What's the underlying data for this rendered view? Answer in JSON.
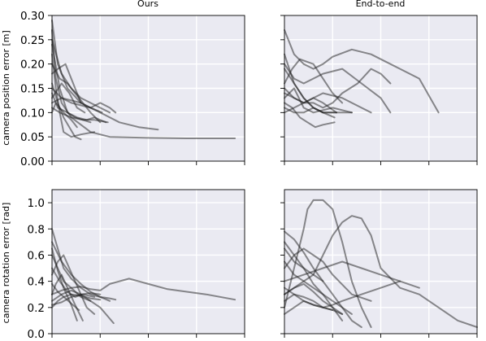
{
  "chart_data": [
    {
      "type": "line",
      "title": "Ours",
      "ylabel": "camera position error [m]",
      "ylim": [
        0,
        0.3
      ],
      "xlim": [
        0,
        1
      ],
      "y_ticks": [
        "0.00",
        "0.05",
        "0.10",
        "0.15",
        "0.20",
        "0.25",
        "0.30"
      ],
      "y_tick_values": [
        0,
        0.05,
        0.1,
        0.15,
        0.2,
        0.25,
        0.3
      ],
      "x_ticks": [
        0,
        0.25,
        0.5,
        0.75,
        1.0
      ],
      "x_tick_labels_shown": false,
      "grid": true,
      "series": [
        {
          "x": [
            0,
            0.03,
            0.08,
            0.15,
            0.25,
            0.35,
            0.45,
            0.55
          ],
          "values": [
            0.29,
            0.2,
            0.15,
            0.12,
            0.1,
            0.08,
            0.07,
            0.065
          ]
        },
        {
          "x": [
            0,
            0.02,
            0.05,
            0.1,
            0.2,
            0.3,
            0.5,
            0.7,
            0.95
          ],
          "values": [
            0.27,
            0.17,
            0.12,
            0.09,
            0.06,
            0.05,
            0.048,
            0.047,
            0.047
          ]
        },
        {
          "x": [
            0,
            0.05,
            0.1,
            0.15,
            0.2,
            0.25,
            0.3
          ],
          "values": [
            0.25,
            0.18,
            0.15,
            0.13,
            0.12,
            0.11,
            0.1
          ]
        },
        {
          "x": [
            0,
            0.02,
            0.04,
            0.06,
            0.1,
            0.15,
            0.22
          ],
          "values": [
            0.22,
            0.15,
            0.1,
            0.06,
            0.05,
            0.055,
            0.06
          ]
        },
        {
          "x": [
            0,
            0.04,
            0.08,
            0.12,
            0.16,
            0.2,
            0.25
          ],
          "values": [
            0.2,
            0.17,
            0.16,
            0.14,
            0.12,
            0.1,
            0.08
          ]
        },
        {
          "x": [
            0,
            0.03,
            0.07,
            0.1,
            0.15
          ],
          "values": [
            0.18,
            0.19,
            0.2,
            0.17,
            0.12
          ]
        },
        {
          "x": [
            0,
            0.03,
            0.06,
            0.09,
            0.12,
            0.15
          ],
          "values": [
            0.16,
            0.12,
            0.09,
            0.07,
            0.05,
            0.045
          ]
        },
        {
          "x": [
            0,
            0.05,
            0.1,
            0.15,
            0.2,
            0.25,
            0.3,
            0.33
          ],
          "values": [
            0.15,
            0.13,
            0.12,
            0.115,
            0.11,
            0.12,
            0.11,
            0.1
          ]
        },
        {
          "x": [
            0,
            0.03,
            0.08,
            0.13,
            0.18,
            0.22,
            0.28
          ],
          "values": [
            0.14,
            0.11,
            0.1,
            0.09,
            0.085,
            0.09,
            0.08
          ]
        },
        {
          "x": [
            0,
            0.05,
            0.1,
            0.15,
            0.2,
            0.26
          ],
          "values": [
            0.12,
            0.13,
            0.125,
            0.12,
            0.11,
            0.1
          ]
        },
        {
          "x": [
            0,
            0.04,
            0.1,
            0.16,
            0.22,
            0.29
          ],
          "values": [
            0.11,
            0.1,
            0.09,
            0.085,
            0.085,
            0.08
          ]
        },
        {
          "x": [
            0,
            0.05,
            0.09,
            0.13,
            0.17
          ],
          "values": [
            0.13,
            0.16,
            0.14,
            0.11,
            0.1
          ]
        },
        {
          "x": [
            0,
            0.02,
            0.06,
            0.1,
            0.13
          ],
          "values": [
            0.1,
            0.12,
            0.1,
            0.085,
            0.07
          ]
        },
        {
          "x": [
            0,
            0.04,
            0.08,
            0.12,
            0.2
          ],
          "values": [
            0.24,
            0.15,
            0.1,
            0.09,
            0.08
          ]
        }
      ]
    },
    {
      "type": "line",
      "title": "End-to-end",
      "ylabel": "",
      "ylim": [
        0,
        0.3
      ],
      "xlim": [
        0,
        1
      ],
      "y_tick_labels_shown": false,
      "x_ticks": [
        0,
        0.25,
        0.5,
        0.75,
        1.0
      ],
      "x_tick_labels_shown": false,
      "grid": true,
      "series": [
        {
          "x": [
            0,
            0.05,
            0.1,
            0.15,
            0.2,
            0.25,
            0.35,
            0.45,
            0.55,
            0.6,
            0.7,
            0.8
          ],
          "values": [
            0.27,
            0.22,
            0.2,
            0.19,
            0.2,
            0.215,
            0.23,
            0.22,
            0.2,
            0.19,
            0.17,
            0.1
          ]
        },
        {
          "x": [
            0,
            0.05,
            0.1,
            0.2,
            0.3,
            0.4,
            0.5,
            0.55
          ],
          "values": [
            0.2,
            0.17,
            0.16,
            0.18,
            0.19,
            0.16,
            0.13,
            0.1
          ]
        },
        {
          "x": [
            0,
            0.05,
            0.1,
            0.15,
            0.2,
            0.3,
            0.4,
            0.45
          ],
          "values": [
            0.15,
            0.13,
            0.12,
            0.13,
            0.14,
            0.13,
            0.11,
            0.1
          ]
        },
        {
          "x": [
            0,
            0.05,
            0.1,
            0.15,
            0.25,
            0.35
          ],
          "values": [
            0.13,
            0.15,
            0.11,
            0.1,
            0.11,
            0.1
          ]
        },
        {
          "x": [
            0,
            0.04,
            0.08,
            0.12,
            0.16,
            0.2,
            0.26
          ],
          "values": [
            0.12,
            0.11,
            0.09,
            0.08,
            0.07,
            0.075,
            0.08
          ]
        },
        {
          "x": [
            0,
            0.05,
            0.1,
            0.15,
            0.2,
            0.25,
            0.3,
            0.38,
            0.45,
            0.5,
            0.55
          ],
          "values": [
            0.14,
            0.13,
            0.12,
            0.12,
            0.11,
            0.12,
            0.14,
            0.16,
            0.19,
            0.18,
            0.16
          ]
        },
        {
          "x": [
            0,
            0.05,
            0.1,
            0.15,
            0.2,
            0.26
          ],
          "values": [
            0.19,
            0.16,
            0.13,
            0.11,
            0.1,
            0.09
          ]
        },
        {
          "x": [
            0,
            0.05,
            0.1,
            0.15,
            0.2,
            0.27
          ],
          "values": [
            0.11,
            0.1,
            0.1,
            0.11,
            0.1,
            0.1
          ]
        },
        {
          "x": [
            0,
            0.04,
            0.08,
            0.15,
            0.2,
            0.25,
            0.3
          ],
          "values": [
            0.16,
            0.19,
            0.21,
            0.2,
            0.17,
            0.14,
            0.12
          ]
        },
        {
          "x": [
            0,
            0.05,
            0.1,
            0.15,
            0.2,
            0.3,
            0.35
          ],
          "values": [
            0.22,
            0.16,
            0.13,
            0.11,
            0.1,
            0.1,
            0.1
          ]
        },
        {
          "x": [
            0,
            0.05,
            0.1,
            0.15,
            0.2,
            0.27
          ],
          "values": [
            0.1,
            0.11,
            0.12,
            0.13,
            0.12,
            0.1
          ]
        }
      ]
    },
    {
      "type": "line",
      "title": "",
      "ylabel": "camera rotation error [rad]",
      "ylim": [
        0,
        1.1
      ],
      "xlim": [
        0,
        1
      ],
      "y_ticks": [
        "0.0",
        "0.2",
        "0.4",
        "0.6",
        "0.8",
        "1.0"
      ],
      "y_tick_values": [
        0,
        0.2,
        0.4,
        0.6,
        0.8,
        1.0
      ],
      "x_ticks": [
        0,
        0.25,
        0.5,
        0.75,
        1.0
      ],
      "x_tick_labels_shown": false,
      "grid": true,
      "series": [
        {
          "x": [
            0,
            0.02,
            0.04,
            0.06,
            0.1,
            0.15,
            0.2,
            0.25,
            0.3,
            0.33
          ],
          "values": [
            0.8,
            0.7,
            0.6,
            0.5,
            0.42,
            0.35,
            0.3,
            0.28,
            0.27,
            0.26
          ]
        },
        {
          "x": [
            0,
            0.05,
            0.1,
            0.15,
            0.2,
            0.25,
            0.3,
            0.4,
            0.5,
            0.6,
            0.7,
            0.8,
            0.95
          ],
          "values": [
            0.3,
            0.33,
            0.35,
            0.36,
            0.34,
            0.33,
            0.38,
            0.42,
            0.38,
            0.34,
            0.32,
            0.3,
            0.26
          ]
        },
        {
          "x": [
            0,
            0.03,
            0.06,
            0.09,
            0.12,
            0.15,
            0.18,
            0.22
          ],
          "values": [
            0.45,
            0.55,
            0.6,
            0.5,
            0.4,
            0.3,
            0.2,
            0.15
          ]
        },
        {
          "x": [
            0,
            0.03,
            0.06,
            0.1,
            0.15,
            0.2,
            0.25
          ],
          "values": [
            0.2,
            0.25,
            0.28,
            0.3,
            0.29,
            0.27,
            0.26
          ]
        },
        {
          "x": [
            0,
            0.05,
            0.1,
            0.15,
            0.2,
            0.25,
            0.3
          ],
          "values": [
            0.7,
            0.55,
            0.45,
            0.38,
            0.32,
            0.28,
            0.25
          ]
        },
        {
          "x": [
            0,
            0.02,
            0.05,
            0.08,
            0.12,
            0.16
          ],
          "values": [
            0.3,
            0.38,
            0.45,
            0.35,
            0.22,
            0.1
          ]
        },
        {
          "x": [
            0,
            0.05,
            0.1,
            0.15,
            0.2,
            0.25,
            0.32
          ],
          "values": [
            0.25,
            0.3,
            0.33,
            0.3,
            0.25,
            0.2,
            0.08
          ]
        },
        {
          "x": [
            0,
            0.03,
            0.06,
            0.1,
            0.15,
            0.2
          ],
          "values": [
            0.6,
            0.5,
            0.4,
            0.35,
            0.28,
            0.25
          ]
        },
        {
          "x": [
            0,
            0.05,
            0.1,
            0.15,
            0.2,
            0.25
          ],
          "values": [
            0.22,
            0.24,
            0.28,
            0.3,
            0.31,
            0.3
          ]
        },
        {
          "x": [
            0,
            0.03,
            0.07,
            0.1,
            0.14
          ],
          "values": [
            0.38,
            0.32,
            0.27,
            0.23,
            0.18
          ]
        },
        {
          "x": [
            0,
            0.04,
            0.08,
            0.12,
            0.16,
            0.22
          ],
          "values": [
            0.5,
            0.4,
            0.32,
            0.28,
            0.3,
            0.28
          ]
        },
        {
          "x": [
            0,
            0.03,
            0.06,
            0.1,
            0.13
          ],
          "values": [
            0.65,
            0.48,
            0.35,
            0.22,
            0.1
          ]
        }
      ]
    },
    {
      "type": "line",
      "title": "",
      "ylabel": "",
      "ylim": [
        0,
        1.1
      ],
      "xlim": [
        0,
        1
      ],
      "y_tick_labels_shown": false,
      "x_ticks": [
        0,
        0.25,
        0.5,
        0.75,
        1.0
      ],
      "x_tick_labels_shown": false,
      "grid": true,
      "series": [
        {
          "x": [
            0,
            0.05,
            0.1,
            0.12,
            0.15,
            0.2,
            0.25,
            0.3,
            0.35,
            0.4,
            0.45
          ],
          "values": [
            0.2,
            0.5,
            0.8,
            0.95,
            1.02,
            1.02,
            0.95,
            0.7,
            0.4,
            0.2,
            0.05
          ]
        },
        {
          "x": [
            0,
            0.05,
            0.1,
            0.15,
            0.2,
            0.25,
            0.3,
            0.35,
            0.4,
            0.45,
            0.5,
            0.6,
            0.7,
            0.8,
            0.9,
            1.0
          ],
          "values": [
            0.55,
            0.45,
            0.4,
            0.45,
            0.6,
            0.75,
            0.85,
            0.9,
            0.88,
            0.75,
            0.5,
            0.35,
            0.3,
            0.2,
            0.1,
            0.05
          ]
        },
        {
          "x": [
            0,
            0.05,
            0.1,
            0.15,
            0.2,
            0.25,
            0.3,
            0.35,
            0.4
          ],
          "values": [
            0.78,
            0.72,
            0.62,
            0.5,
            0.4,
            0.3,
            0.2,
            0.1,
            0.05
          ]
        },
        {
          "x": [
            0,
            0.05,
            0.1,
            0.15,
            0.2,
            0.25,
            0.3
          ],
          "values": [
            0.7,
            0.6,
            0.5,
            0.38,
            0.3,
            0.2,
            0.1
          ]
        },
        {
          "x": [
            0,
            0.1,
            0.2,
            0.3,
            0.4,
            0.5,
            0.6
          ],
          "values": [
            0.4,
            0.45,
            0.5,
            0.55,
            0.5,
            0.45,
            0.4
          ]
        },
        {
          "x": [
            0,
            0.05,
            0.1,
            0.15,
            0.2,
            0.25,
            0.3,
            0.35
          ],
          "values": [
            0.3,
            0.35,
            0.4,
            0.35,
            0.3,
            0.25,
            0.2,
            0.15
          ]
        },
        {
          "x": [
            0,
            0.05,
            0.1,
            0.15,
            0.2,
            0.25,
            0.3
          ],
          "values": [
            0.15,
            0.2,
            0.25,
            0.22,
            0.2,
            0.18,
            0.15
          ]
        },
        {
          "x": [
            0,
            0.05,
            0.1,
            0.15,
            0.2
          ],
          "values": [
            0.65,
            0.55,
            0.5,
            0.45,
            0.4
          ]
        },
        {
          "x": [
            0,
            0.05,
            0.1,
            0.15,
            0.2,
            0.25,
            0.35,
            0.45
          ],
          "values": [
            0.5,
            0.6,
            0.65,
            0.6,
            0.55,
            0.45,
            0.3,
            0.25
          ]
        },
        {
          "x": [
            0,
            0.05,
            0.1,
            0.15,
            0.2,
            0.25,
            0.3,
            0.4,
            0.5,
            0.6,
            0.7
          ],
          "values": [
            0.35,
            0.3,
            0.25,
            0.22,
            0.2,
            0.22,
            0.25,
            0.3,
            0.35,
            0.4,
            0.35
          ]
        },
        {
          "x": [
            0,
            0.05,
            0.1,
            0.15,
            0.2,
            0.25
          ],
          "values": [
            0.25,
            0.3,
            0.28,
            0.25,
            0.2,
            0.18
          ]
        },
        {
          "x": [
            0,
            0.05,
            0.1,
            0.15,
            0.2,
            0.25,
            0.3
          ],
          "values": [
            0.3,
            0.35,
            0.38,
            0.32,
            0.25,
            0.2,
            0.15
          ]
        }
      ]
    }
  ]
}
